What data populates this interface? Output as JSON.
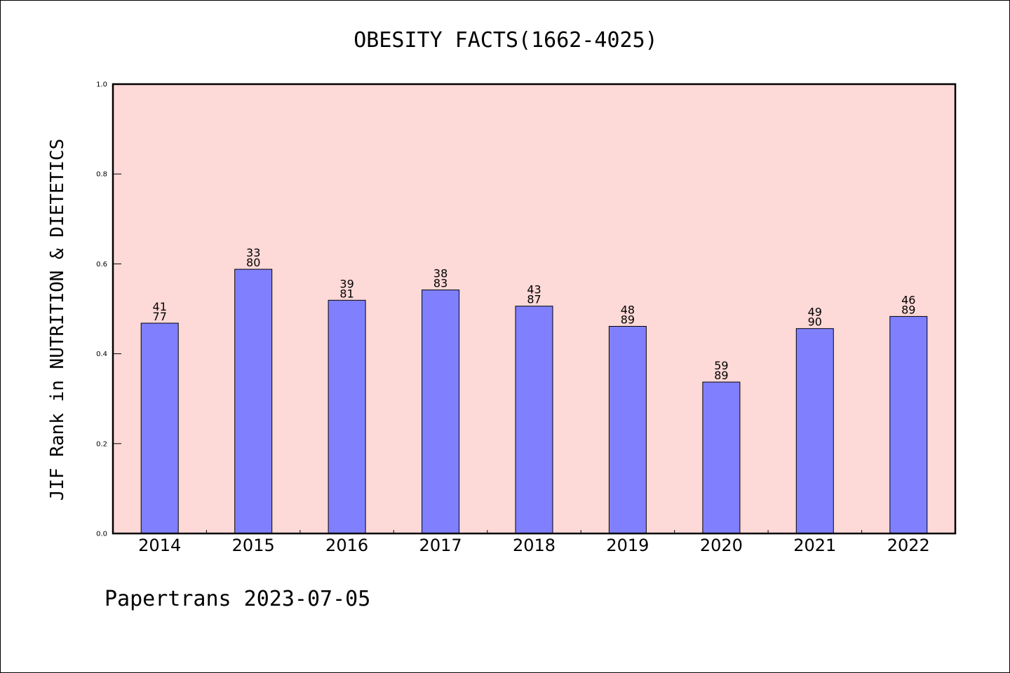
{
  "chart_data": {
    "type": "bar",
    "title": "OBESITY FACTS(1662-4025)",
    "xlabel": "",
    "ylabel": "JIF Rank in NUTRITION & DIETETICS",
    "ylim": [
      0,
      1.0
    ],
    "yticks": [
      "0.0",
      "0.2",
      "0.4",
      "0.6",
      "0.8",
      "1.0"
    ],
    "grid": false,
    "categories": [
      "2014",
      "2015",
      "2016",
      "2017",
      "2018",
      "2019",
      "2020",
      "2021",
      "2022"
    ],
    "values": [
      0.468,
      0.588,
      0.519,
      0.542,
      0.506,
      0.461,
      0.337,
      0.456,
      0.483
    ],
    "rank": [
      "41",
      "33",
      "39",
      "38",
      "43",
      "48",
      "59",
      "49",
      "46"
    ],
    "total": [
      "77",
      "80",
      "81",
      "83",
      "87",
      "89",
      "89",
      "90",
      "89"
    ]
  },
  "colors": {
    "plot_background": "#fdd9d7",
    "bar_fill": "#8080ff",
    "bar_stroke": "#000000"
  },
  "footer": "Papertrans 2023-07-05"
}
